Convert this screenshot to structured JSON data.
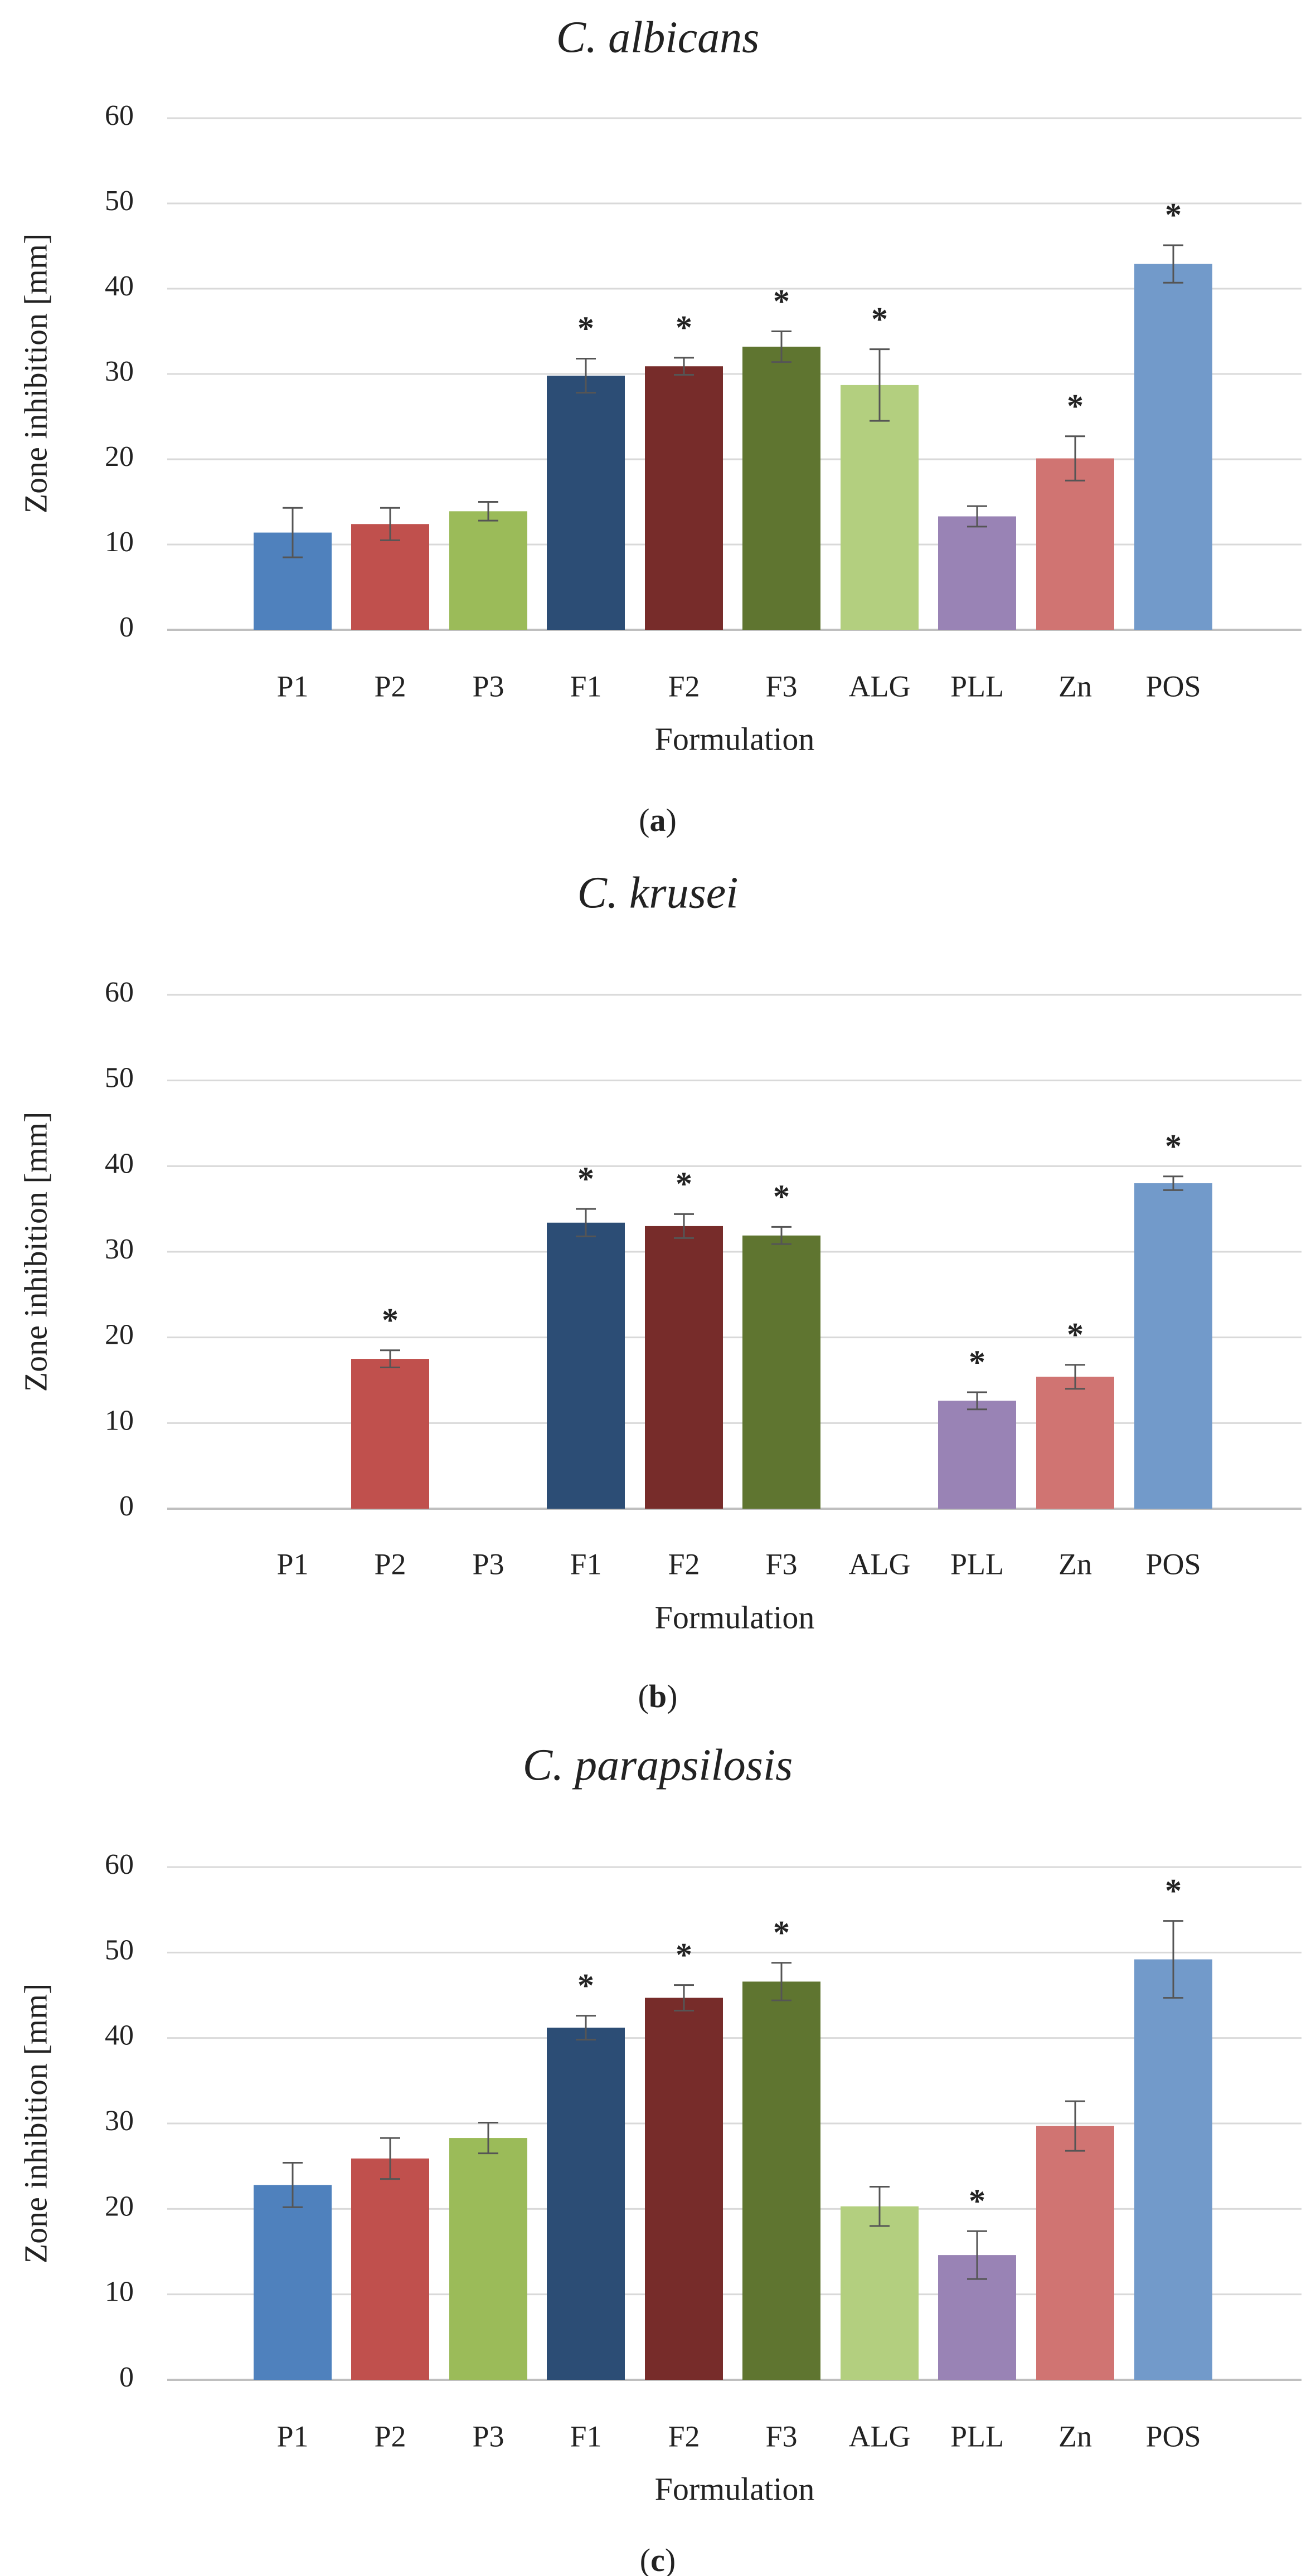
{
  "chart_data": [
    {
      "type": "bar",
      "title": "C. albicans",
      "panel_label": "a",
      "xlabel": "Formulation",
      "ylabel": "Zone inhibition [mm]",
      "ylim": [
        0,
        60
      ],
      "yticks": [
        0,
        10,
        20,
        30,
        40,
        50,
        60
      ],
      "grid": true,
      "categories": [
        "P1",
        "P2",
        "P3",
        "F1",
        "F2",
        "F3",
        "ALG",
        "PLL",
        "Zn",
        "POS"
      ],
      "values": [
        11.4,
        12.4,
        13.9,
        29.8,
        30.9,
        33.2,
        28.7,
        13.3,
        20.1,
        42.9
      ],
      "errors": [
        2.9,
        1.9,
        1.1,
        2.0,
        1.0,
        1.8,
        4.2,
        1.2,
        2.6,
        2.2
      ],
      "significant": [
        false,
        false,
        false,
        true,
        true,
        true,
        true,
        false,
        true,
        true
      ],
      "significance_mark": "*"
    },
    {
      "type": "bar",
      "title": "C. krusei",
      "panel_label": "b",
      "xlabel": "Formulation",
      "ylabel": "Zone inhibition [mm]",
      "ylim": [
        0,
        60
      ],
      "yticks": [
        0,
        10,
        20,
        30,
        40,
        50,
        60
      ],
      "grid": true,
      "categories": [
        "P1",
        "P2",
        "P3",
        "F1",
        "F2",
        "F3",
        "ALG",
        "PLL",
        "Zn",
        "POS"
      ],
      "values": [
        0,
        17.5,
        0,
        33.4,
        33.0,
        31.9,
        0,
        12.6,
        15.4,
        38.0
      ],
      "errors": [
        0,
        1.0,
        0,
        1.6,
        1.4,
        1.0,
        0,
        1.0,
        1.4,
        0.8
      ],
      "significant": [
        false,
        true,
        false,
        true,
        true,
        true,
        false,
        true,
        true,
        true
      ],
      "significance_mark": "*"
    },
    {
      "type": "bar",
      "title": "C. parapsilosis",
      "panel_label": "c",
      "xlabel": "Formulation",
      "ylabel": "Zone inhibition [mm]",
      "ylim": [
        0,
        60
      ],
      "yticks": [
        0,
        10,
        20,
        30,
        40,
        50,
        60
      ],
      "grid": true,
      "categories": [
        "P1",
        "P2",
        "P3",
        "F1",
        "F2",
        "F3",
        "ALG",
        "PLL",
        "Zn",
        "POS"
      ],
      "values": [
        22.8,
        25.9,
        28.3,
        41.2,
        44.7,
        46.6,
        20.3,
        14.6,
        29.7,
        49.2
      ],
      "errors": [
        2.6,
        2.4,
        1.8,
        1.4,
        1.5,
        2.2,
        2.3,
        2.8,
        2.9,
        4.5
      ],
      "significant": [
        false,
        false,
        false,
        true,
        true,
        true,
        false,
        true,
        false,
        true
      ],
      "significance_mark": "*"
    }
  ],
  "colors": {
    "bars": [
      "#4f81bd",
      "#c0504d",
      "#9bbb59",
      "#2c4d75",
      "#772c2a",
      "#5f7530",
      "#b3cf7f",
      "#9983b5",
      "#d07472",
      "#729aca"
    ],
    "grid": "#d9d9d9",
    "axis": "#bfbfbf",
    "error_bar": "#555555",
    "text": "#222222"
  }
}
